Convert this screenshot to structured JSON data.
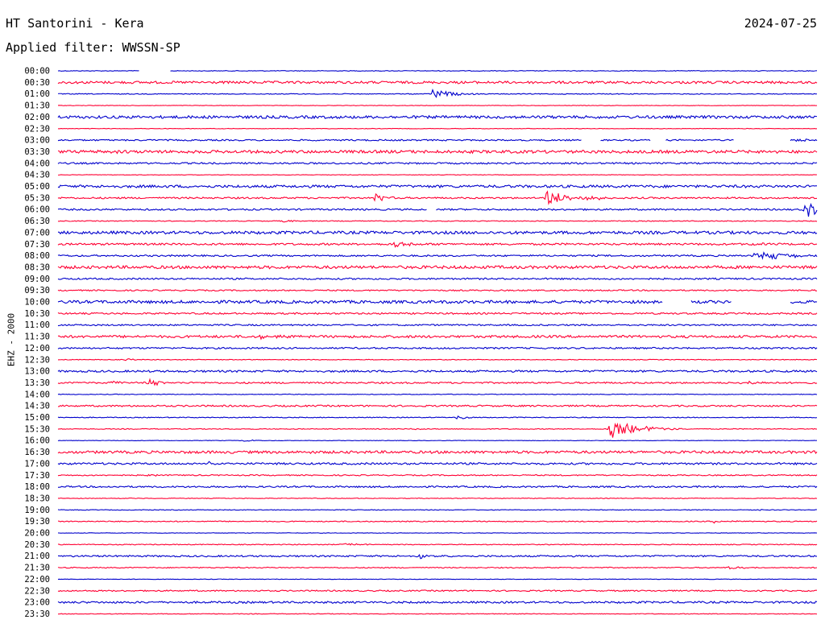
{
  "header": {
    "station": "HT Santorini - Kera",
    "date": "2024-07-25",
    "filter": "Applied filter: WWSSN-SP",
    "channel": "EHZ - 2000"
  },
  "colors": {
    "trace_a": "#0000cc",
    "trace_b": "#ff0033"
  },
  "chart_data": {
    "type": "line",
    "title": "HT Santorini - Kera",
    "subtitle": "Applied filter: WWSSN-SP",
    "ylabel": "EHZ - 2000",
    "xlabel": "",
    "x_range_minutes": [
      0,
      30
    ],
    "series_colors_alternate": [
      "blue",
      "red"
    ],
    "rows": [
      {
        "label": "00:00",
        "noise": 0.4,
        "gaps": [
          [
            3.2,
            4.4
          ]
        ],
        "events": []
      },
      {
        "label": "00:30",
        "noise": 1.5,
        "gaps": [],
        "events": []
      },
      {
        "label": "01:00",
        "noise": 0.5,
        "gaps": [],
        "events": [
          {
            "t": 14.8,
            "amp": 7,
            "dur": 0.6
          }
        ]
      },
      {
        "label": "01:30",
        "noise": 0.3,
        "gaps": [],
        "events": []
      },
      {
        "label": "02:00",
        "noise": 1.7,
        "gaps": [],
        "events": []
      },
      {
        "label": "02:30",
        "noise": 0.3,
        "gaps": [],
        "events": []
      },
      {
        "label": "03:00",
        "noise": 0.9,
        "gaps": [
          [
            20.7,
            21.4
          ],
          [
            23.4,
            24.0
          ],
          [
            23.5,
            23.9
          ],
          [
            26.7,
            28.9
          ]
        ],
        "events": [
          {
            "t": 29.2,
            "amp": 2,
            "dur": 0.4
          }
        ]
      },
      {
        "label": "03:30",
        "noise": 1.8,
        "gaps": [],
        "events": [
          {
            "t": 1.6,
            "amp": 2,
            "dur": 0.4
          }
        ]
      },
      {
        "label": "04:00",
        "noise": 1.0,
        "gaps": [],
        "events": []
      },
      {
        "label": "04:30",
        "noise": 0.3,
        "gaps": [],
        "events": []
      },
      {
        "label": "05:00",
        "noise": 1.6,
        "gaps": [],
        "events": []
      },
      {
        "label": "05:30",
        "noise": 1.0,
        "gaps": [],
        "events": [
          {
            "t": 12.5,
            "amp": 7,
            "dur": 0.3
          },
          {
            "t": 19.3,
            "amp": 10,
            "dur": 0.7
          },
          {
            "t": 20.7,
            "amp": 4,
            "dur": 0.4
          }
        ]
      },
      {
        "label": "06:00",
        "noise": 1.0,
        "gaps": [
          [
            14.6,
            14.9
          ]
        ],
        "events": [
          {
            "t": 29.5,
            "amp": 10,
            "dur": 0.6
          }
        ]
      },
      {
        "label": "06:30",
        "noise": 0.5,
        "gaps": [],
        "events": [
          {
            "t": 8.9,
            "amp": 2,
            "dur": 0.3
          }
        ]
      },
      {
        "label": "07:00",
        "noise": 1.8,
        "gaps": [],
        "events": []
      },
      {
        "label": "07:30",
        "noise": 1.2,
        "gaps": [],
        "events": [
          {
            "t": 13.3,
            "amp": 4,
            "dur": 0.5
          },
          {
            "t": 27.3,
            "amp": 2,
            "dur": 0.4
          }
        ]
      },
      {
        "label": "08:00",
        "noise": 1.0,
        "gaps": [],
        "events": [
          {
            "t": 27.5,
            "amp": 6,
            "dur": 1.3
          }
        ]
      },
      {
        "label": "08:30",
        "noise": 1.8,
        "gaps": [],
        "events": []
      },
      {
        "label": "09:00",
        "noise": 1.0,
        "gaps": [],
        "events": []
      },
      {
        "label": "09:30",
        "noise": 0.8,
        "gaps": [],
        "events": []
      },
      {
        "label": "10:00",
        "noise": 1.8,
        "gaps": [
          [
            23.9,
            25.0
          ],
          [
            26.6,
            27.3
          ],
          [
            26.7,
            28.9
          ]
        ],
        "events": []
      },
      {
        "label": "10:30",
        "noise": 1.0,
        "gaps": [],
        "events": []
      },
      {
        "label": "11:00",
        "noise": 0.9,
        "gaps": [],
        "events": []
      },
      {
        "label": "11:30",
        "noise": 1.5,
        "gaps": [],
        "events": [
          {
            "t": 8.0,
            "amp": 2,
            "dur": 0.6
          }
        ]
      },
      {
        "label": "12:00",
        "noise": 1.0,
        "gaps": [],
        "events": [
          {
            "t": 26.1,
            "amp": 3,
            "dur": 0.2
          }
        ]
      },
      {
        "label": "12:30",
        "noise": 0.4,
        "gaps": [],
        "events": [
          {
            "t": 2.7,
            "amp": 2,
            "dur": 0.2
          }
        ]
      },
      {
        "label": "13:00",
        "noise": 1.2,
        "gaps": [],
        "events": []
      },
      {
        "label": "13:30",
        "noise": 1.0,
        "gaps": [],
        "events": [
          {
            "t": 2.0,
            "amp": 3,
            "dur": 0.4
          },
          {
            "t": 3.6,
            "amp": 6,
            "dur": 0.3
          },
          {
            "t": 27.0,
            "amp": 4,
            "dur": 0.4
          }
        ]
      },
      {
        "label": "14:00",
        "noise": 0.4,
        "gaps": [],
        "events": []
      },
      {
        "label": "14:30",
        "noise": 1.0,
        "gaps": [],
        "events": []
      },
      {
        "label": "15:00",
        "noise": 0.5,
        "gaps": [],
        "events": [
          {
            "t": 15.8,
            "amp": 4,
            "dur": 0.3
          }
        ]
      },
      {
        "label": "15:30",
        "noise": 0.5,
        "gaps": [],
        "events": [
          {
            "t": 14.0,
            "amp": 2,
            "dur": 0.2
          },
          {
            "t": 21.8,
            "amp": 12,
            "dur": 1.0
          }
        ]
      },
      {
        "label": "16:00",
        "noise": 0.3,
        "gaps": [],
        "events": [
          {
            "t": 7.4,
            "amp": 2,
            "dur": 0.2
          }
        ]
      },
      {
        "label": "16:30",
        "noise": 1.6,
        "gaps": [],
        "events": []
      },
      {
        "label": "17:00",
        "noise": 1.2,
        "gaps": [],
        "events": [
          {
            "t": 5.9,
            "amp": 2,
            "dur": 0.3
          }
        ]
      },
      {
        "label": "17:30",
        "noise": 0.7,
        "gaps": [],
        "events": [
          {
            "t": 3.5,
            "amp": 2,
            "dur": 0.3
          }
        ]
      },
      {
        "label": "18:00",
        "noise": 1.0,
        "gaps": [],
        "events": []
      },
      {
        "label": "18:30",
        "noise": 0.4,
        "gaps": [],
        "events": []
      },
      {
        "label": "19:00",
        "noise": 0.4,
        "gaps": [],
        "events": [
          {
            "t": 27.5,
            "amp": 2,
            "dur": 0.2
          }
        ]
      },
      {
        "label": "19:30",
        "noise": 0.6,
        "gaps": [],
        "events": [
          {
            "t": 25.9,
            "amp": 2,
            "dur": 0.6
          }
        ]
      },
      {
        "label": "20:00",
        "noise": 0.3,
        "gaps": [],
        "events": []
      },
      {
        "label": "20:30",
        "noise": 0.5,
        "gaps": [],
        "events": [
          {
            "t": 11.3,
            "amp": 2,
            "dur": 0.6
          }
        ]
      },
      {
        "label": "21:00",
        "noise": 1.0,
        "gaps": [],
        "events": [
          {
            "t": 14.3,
            "amp": 4,
            "dur": 0.4
          }
        ]
      },
      {
        "label": "21:30",
        "noise": 0.6,
        "gaps": [],
        "events": [
          {
            "t": 26.5,
            "amp": 2,
            "dur": 0.6
          }
        ]
      },
      {
        "label": "22:00",
        "noise": 0.3,
        "gaps": [],
        "events": []
      },
      {
        "label": "22:30",
        "noise": 0.8,
        "gaps": [],
        "events": []
      },
      {
        "label": "23:00",
        "noise": 1.2,
        "gaps": [],
        "events": []
      },
      {
        "label": "23:30",
        "noise": 0.4,
        "gaps": [],
        "events": []
      }
    ]
  }
}
